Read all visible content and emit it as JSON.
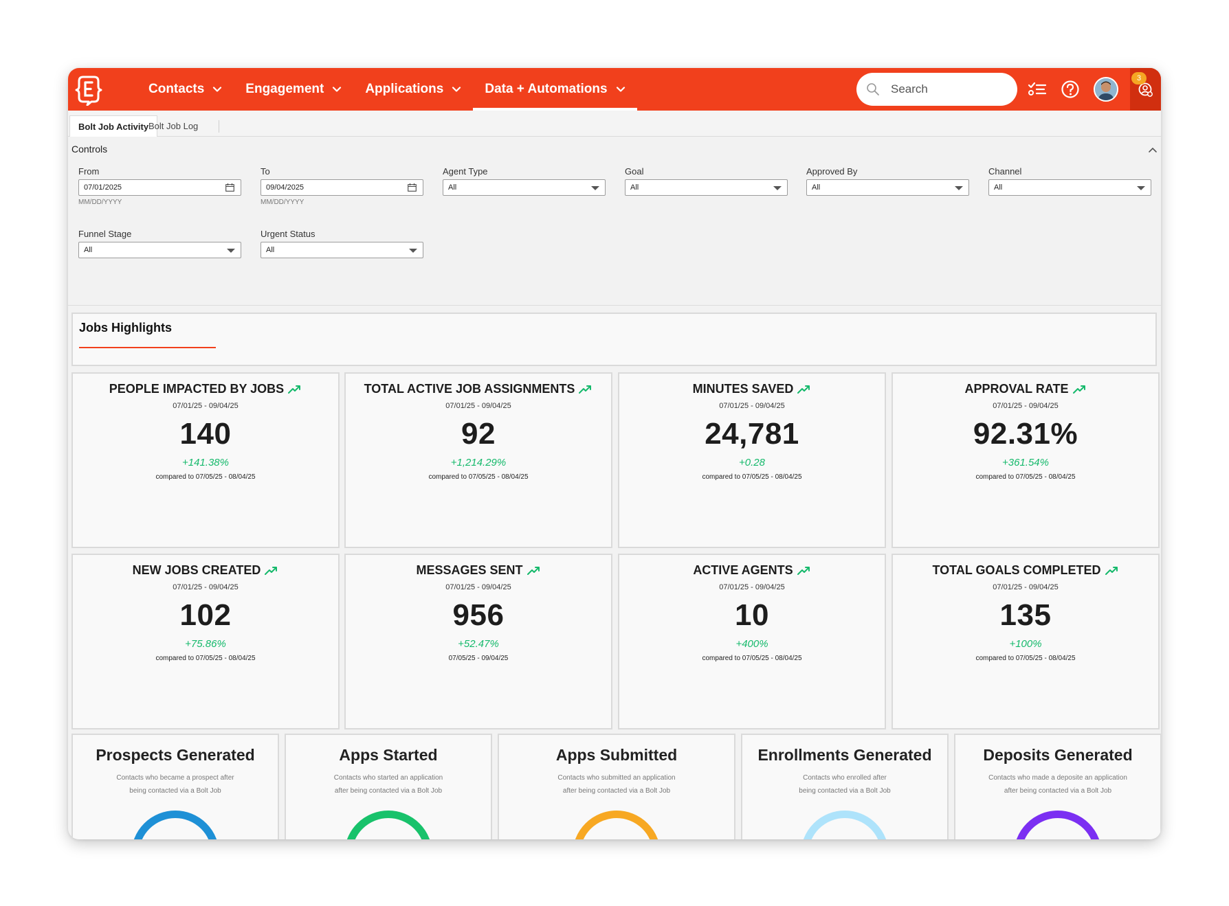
{
  "nav": {
    "items": [
      {
        "label": "Contacts"
      },
      {
        "label": "Engagement"
      },
      {
        "label": "Applications"
      },
      {
        "label": "Data + Automations"
      }
    ],
    "search_placeholder": "Search",
    "notification_count": "3"
  },
  "tabs": [
    {
      "label": "Bolt Job Activity"
    },
    {
      "label": "Bolt Job Log"
    }
  ],
  "controls": {
    "title": "Controls",
    "from": {
      "label": "From",
      "value": "07/01/2025",
      "hint": "MM/DD/YYYY"
    },
    "to": {
      "label": "To",
      "value": "09/04/2025",
      "hint": "MM/DD/YYYY"
    },
    "agent_type": {
      "label": "Agent Type",
      "value": "All"
    },
    "goal": {
      "label": "Goal",
      "value": "All"
    },
    "approved_by": {
      "label": "Approved By",
      "value": "All"
    },
    "channel": {
      "label": "Channel",
      "value": "All"
    },
    "funnel_stage": {
      "label": "Funnel Stage",
      "value": "All"
    },
    "urgent_status": {
      "label": "Urgent Status",
      "value": "All"
    }
  },
  "highlights": {
    "title": "Jobs Highlights",
    "cards": [
      {
        "title": "PEOPLE IMPACTED BY JOBS",
        "range": "07/01/25 - 09/04/25",
        "value": "140",
        "change": "+141.38%",
        "compare": "compared to 07/05/25 - 08/04/25"
      },
      {
        "title": "TOTAL ACTIVE JOB ASSIGNMENTS",
        "range": "07/01/25 - 09/04/25",
        "value": "92",
        "change": "+1,214.29%",
        "compare": "compared to 07/05/25 - 08/04/25"
      },
      {
        "title": "MINUTES SAVED",
        "range": "07/01/25 - 09/04/25",
        "value": "24,781",
        "change": "+0.28",
        "compare": "compared to 07/05/25 - 08/04/25"
      },
      {
        "title": "APPROVAL RATE",
        "range": "07/01/25 - 09/04/25",
        "value": "92.31%",
        "change": "+361.54%",
        "compare": "compared to 07/05/25 - 08/04/25"
      },
      {
        "title": "NEW JOBS CREATED",
        "range": "07/01/25 - 09/04/25",
        "value": "102",
        "change": "+75.86%",
        "compare": "compared to 07/05/25 - 08/04/25"
      },
      {
        "title": "MESSAGES SENT",
        "range": "07/01/25 - 09/04/25",
        "value": "956",
        "change": "+52.47%",
        "compare": "07/05/25 - 09/04/25"
      },
      {
        "title": "ACTIVE AGENTS",
        "range": "07/01/25 - 09/04/25",
        "value": "10",
        "change": "+400%",
        "compare": "compared to 07/05/25 - 08/04/25"
      },
      {
        "title": "TOTAL GOALS COMPLETED",
        "range": "07/01/25 - 09/04/25",
        "value": "135",
        "change": "+100%",
        "compare": "compared to 07/05/25 - 08/04/25"
      }
    ]
  },
  "funnel": [
    {
      "title": "Prospects Generated",
      "desc1": "Contacts who became a prospect after",
      "desc2": "being contacted via a Bolt Job",
      "color": "#1e90d6"
    },
    {
      "title": "Apps Started",
      "desc1": "Contacts who started an application",
      "desc2": "after being contacted via a Bolt Job",
      "color": "#18c26b"
    },
    {
      "title": "Apps Submitted",
      "desc1": "Contacts who submitted an application",
      "desc2": "after being contacted via a Bolt Job",
      "color": "#f7a823"
    },
    {
      "title": "Enrollments Generated",
      "desc1": "Contacts who enrolled after",
      "desc2": "being contacted via a Bolt Job",
      "color": "#aee3fb"
    },
    {
      "title": "Deposits Generated",
      "desc1": "Contacts who made a deposite an application",
      "desc2": "after being contacted via a Bolt Job",
      "color": "#7b2ff2"
    }
  ],
  "colors": {
    "brand": "#f1401c",
    "positive": "#15b96b"
  }
}
